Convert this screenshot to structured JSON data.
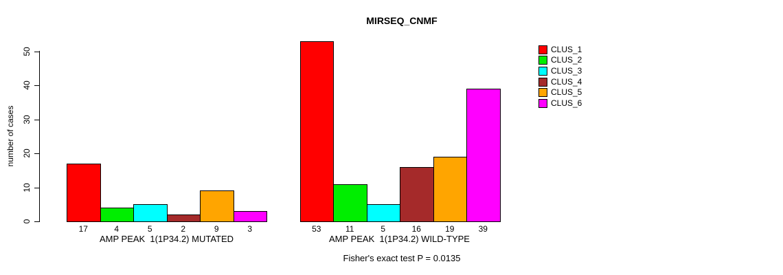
{
  "chart_data": {
    "type": "bar",
    "title": "MIRSEQ_CNMF",
    "ylabel": "number of cases",
    "ylim": [
      0,
      50
    ],
    "yticks": [
      0,
      10,
      20,
      30,
      40,
      50
    ],
    "grid": false,
    "legend_position": "right",
    "legend": [
      {
        "label": "CLUS_1",
        "color": "#FF0000"
      },
      {
        "label": "CLUS_2",
        "color": "#00EE00"
      },
      {
        "label": "CLUS_3",
        "color": "#00FFFF"
      },
      {
        "label": "CLUS_4",
        "color": "#A52A2A"
      },
      {
        "label": "CLUS_5",
        "color": "#FFA500"
      },
      {
        "label": "CLUS_6",
        "color": "#FF00FF"
      }
    ],
    "groups": [
      {
        "label": "AMP PEAK  1(1P34.2) MUTATED",
        "values": [
          17,
          4,
          5,
          2,
          9,
          3
        ]
      },
      {
        "label": "AMP PEAK  1(1P34.2) WILD-TYPE",
        "values": [
          53,
          11,
          5,
          16,
          19,
          39
        ]
      }
    ],
    "annotation": "Fisher's exact test P = 0.0135"
  }
}
